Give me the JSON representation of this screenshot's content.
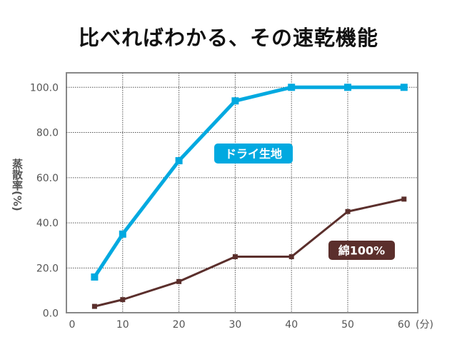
{
  "chart_data": {
    "type": "line",
    "title": "比べればわかる、その速乾機能",
    "ylabel": "蒸散率(%)",
    "xunit": "(分)",
    "x": [
      5,
      10,
      20,
      30,
      40,
      50,
      60
    ],
    "xticks": [
      "0",
      "10",
      "20",
      "30",
      "40",
      "50",
      "60"
    ],
    "yticks": [
      "0.0",
      "20.0",
      "40.0",
      "60.0",
      "80.0",
      "100.0"
    ],
    "xlim": [
      0,
      60
    ],
    "ylim": [
      0,
      100
    ],
    "grid": true,
    "series": [
      {
        "name": "ドライ生地",
        "color": "#00a9e0",
        "values": [
          16,
          35,
          67.5,
          94,
          100,
          100,
          100
        ]
      },
      {
        "name": "綿100%",
        "color": "#5b2f2c",
        "values": [
          3,
          6,
          14,
          25,
          25,
          45,
          50.5
        ]
      }
    ]
  }
}
